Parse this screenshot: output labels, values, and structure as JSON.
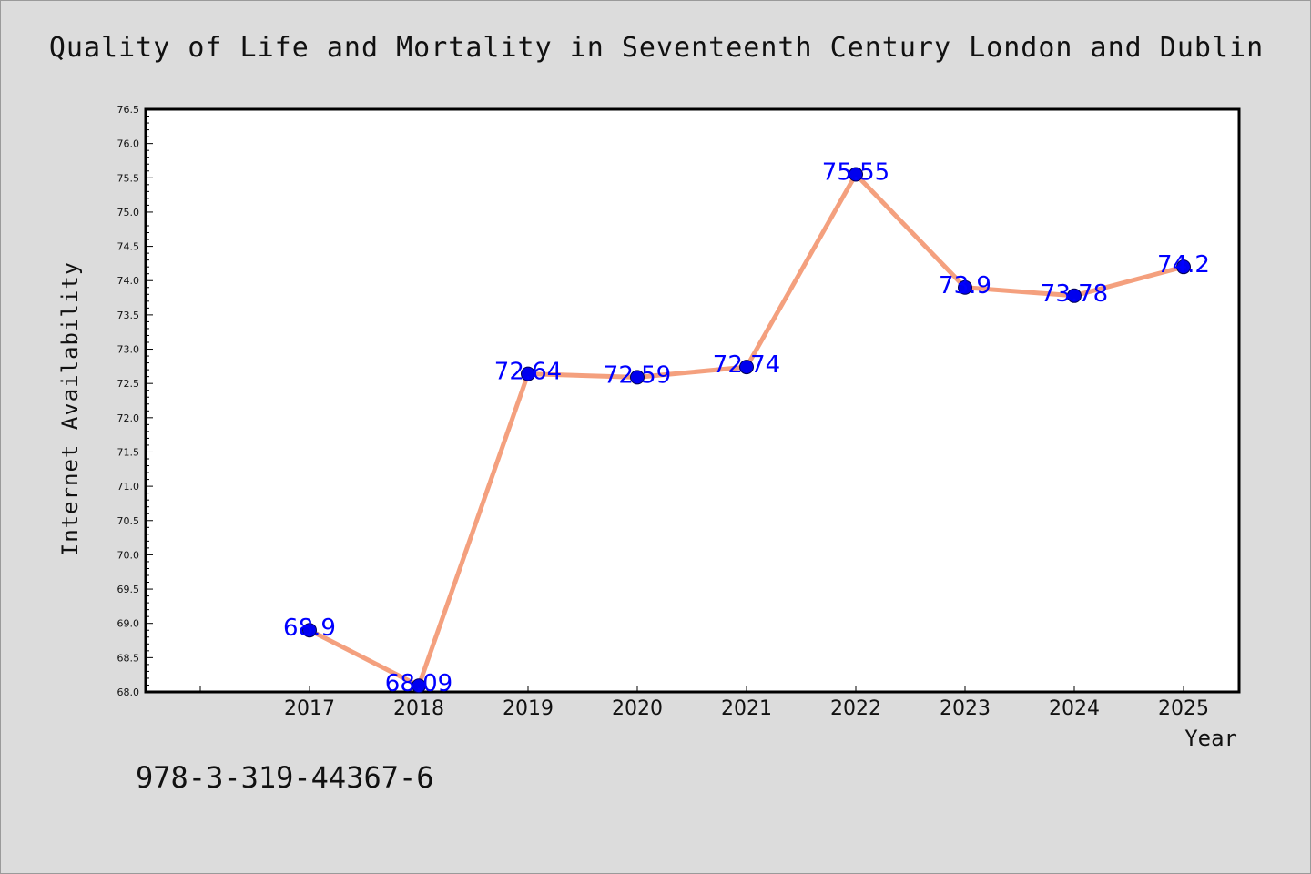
{
  "chart_data": {
    "type": "line",
    "title": "Quality of Life and Mortality in Seventeenth Century London and Dublin",
    "xlabel": "Year",
    "ylabel": "Internet Availability",
    "categories": [
      "2017",
      "2018",
      "2019",
      "2020",
      "2021",
      "2022",
      "2023",
      "2024",
      "2025"
    ],
    "series": [
      {
        "values": [
          68.9,
          68.09,
          72.64,
          72.59,
          72.74,
          75.55,
          73.9,
          73.78,
          74.2
        ],
        "labels": [
          "68.9",
          "68.09",
          "72.64",
          "72.59",
          "72.74",
          "75.55",
          "73.9",
          "73.78",
          "74.2"
        ],
        "line_color": "#f4a07e",
        "marker_color": "#0000ee",
        "label_color": "#0000ff"
      }
    ],
    "ylim": [
      68.0,
      76.5
    ],
    "yticks": [
      "68.0",
      "68.5",
      "69.0",
      "69.5",
      "70.0",
      "70.5",
      "71.0",
      "71.5",
      "72.0",
      "72.5",
      "73.0",
      "73.5",
      "74.0",
      "74.5",
      "75.0",
      "75.5",
      "76.0",
      "76.5"
    ],
    "grid": false,
    "legend": "none"
  },
  "footer": {
    "isbn": "978-3-319-44367-6"
  },
  "colors": {
    "background": "#dcdcdc",
    "plot_background": "#ffffff",
    "axis": "#000000"
  }
}
